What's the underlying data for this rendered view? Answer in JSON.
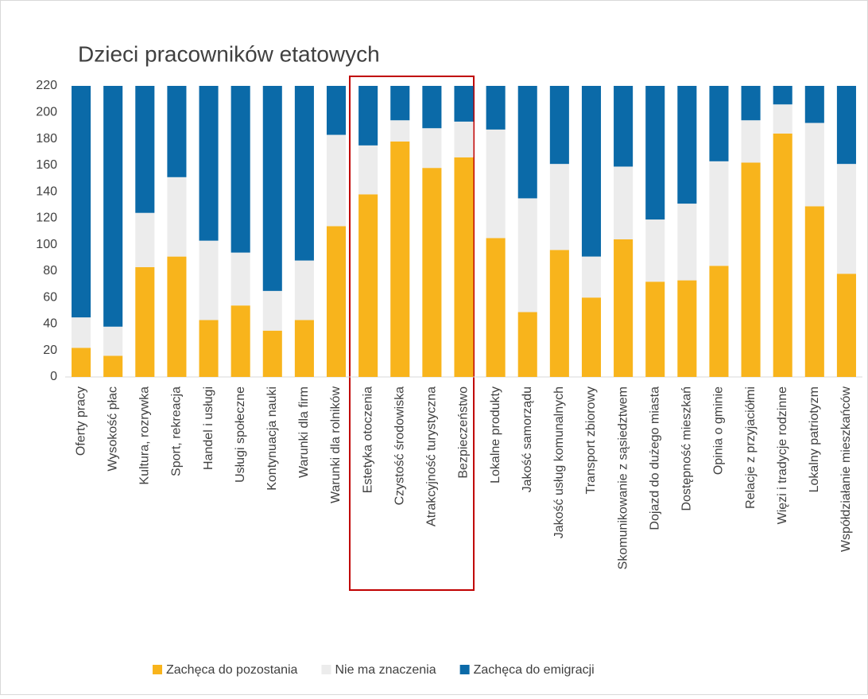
{
  "chart_data": {
    "type": "stacked_bar",
    "title": "Dzieci pracowników etatowych",
    "categories": [
      "Oferty pracy",
      "Wysokość płac",
      "Kultura, rozrywka",
      "Sport, rekreacja",
      "Handel i usługi",
      "Usługi społeczne",
      "Kontynuacja nauki",
      "Warunki dla firm",
      "Warunki dla rolników",
      "Estetyka otoczenia",
      "Czystość środowiska",
      "Atrakcyjność turystyczna",
      "Bezpieczeństwo",
      "Lokalne produkty",
      "Jakość samorządu",
      "Jakość usług komunalnych",
      "Transport zbiorowy",
      "Skomunikowanie z sąsiedztwem",
      "Dojazd do dużego miasta",
      "Dostępność mieszkań",
      "Opinia o gminie",
      "Relacje z przyjaciółmi",
      "Więzi i tradycje rodzinne",
      "Lokalny patriotyzm",
      "Współdziałanie mieszkańców"
    ],
    "series": [
      {
        "name": "Zachęca do pozostania",
        "color": "#f8b41c",
        "values": [
          22,
          16,
          83,
          91,
          43,
          54,
          35,
          43,
          114,
          138,
          178,
          158,
          166,
          105,
          49,
          96,
          60,
          104,
          72,
          73,
          84,
          162,
          184,
          129,
          78
        ]
      },
      {
        "name": "Nie ma znaczenia",
        "color": "#ececec",
        "values": [
          23,
          22,
          41,
          60,
          60,
          40,
          30,
          45,
          69,
          37,
          16,
          30,
          27,
          82,
          86,
          65,
          31,
          55,
          47,
          58,
          79,
          32,
          22,
          63,
          83
        ]
      },
      {
        "name": "Zachęca do emigracji",
        "color": "#0b6aa8",
        "values": [
          175,
          182,
          96,
          69,
          117,
          126,
          155,
          132,
          37,
          45,
          26,
          32,
          27,
          33,
          85,
          59,
          129,
          61,
          101,
          89,
          57,
          26,
          14,
          28,
          59
        ]
      }
    ],
    "ylim": [
      0,
      220
    ],
    "yticks": [
      0,
      20,
      40,
      60,
      80,
      100,
      120,
      140,
      160,
      180,
      200,
      220
    ],
    "grid": false,
    "legend": "bottom"
  }
}
